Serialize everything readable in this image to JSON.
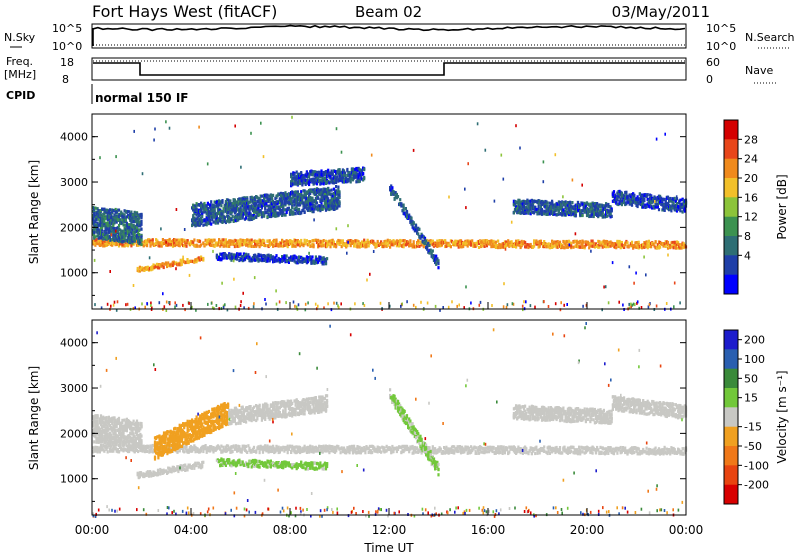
{
  "header": {
    "title": "Fort Hays West (fitACF)",
    "beam": "Beam 02",
    "date": "03/May/2011"
  },
  "status_panel": {
    "nsky_label": "N.Sky",
    "nsearch_label": "N.Search",
    "freq_label": "Freq.",
    "freq_unit": "[MHz]",
    "nave_label": "Nave",
    "cpid_label": "CPID",
    "cpid_value": "normal 150 IF",
    "noise_ticks": [
      "10^5",
      "10^0"
    ],
    "noise_right_ticks": [
      "10^5",
      "10^0"
    ],
    "freq_ticks": [
      "18",
      "8"
    ],
    "nave_ticks": [
      "60",
      "0"
    ]
  },
  "colors": {
    "power_scale": [
      "#0000ff",
      "#1f3fa8",
      "#2e6e74",
      "#3c9250",
      "#8cc43a",
      "#f2c02a",
      "#f08a1c",
      "#e8461a",
      "#d40000"
    ],
    "velocity_scale": [
      "#1c1ccc",
      "#2a5fb0",
      "#3a8a3a",
      "#72c83a",
      "#c8c8c4",
      "#f0a020",
      "#f07818",
      "#e84410",
      "#d80000"
    ]
  },
  "chart_data": [
    {
      "type": "heatmap",
      "name": "power",
      "ylabel": "Slant Range [km]",
      "yticks": [
        "4000",
        "3000",
        "2000",
        "1000"
      ],
      "ylim": [
        200,
        4500
      ],
      "xlim": [
        "00:00",
        "24:00"
      ],
      "colorbar_label": "Power [dB]",
      "colorbar_ticks": [
        "28",
        "24",
        "20",
        "16",
        "12",
        "8",
        "4"
      ],
      "colorbar_range": [
        0,
        32
      ],
      "bands": [
        {
          "t": [
            0,
            24
          ],
          "range_center": [
            1700,
            1650
          ],
          "width": 150,
          "value": 22
        },
        {
          "t": [
            0,
            2
          ],
          "range_center": [
            2150,
            2000
          ],
          "width": 700,
          "value": 8
        },
        {
          "t": [
            1.8,
            4.5
          ],
          "range_center": [
            1100,
            1350
          ],
          "width": 100,
          "value": 22
        },
        {
          "t": [
            4,
            10
          ],
          "range_center": [
            2300,
            2700
          ],
          "width": 500,
          "value": 7
        },
        {
          "t": [
            5,
            9.5
          ],
          "range_center": [
            1400,
            1300
          ],
          "width": 150,
          "value": 5
        },
        {
          "t": [
            8,
            11
          ],
          "range_center": [
            3100,
            3200
          ],
          "width": 300,
          "value": 6
        },
        {
          "t": [
            12,
            14
          ],
          "range_center": [
            2900,
            1200
          ],
          "width": 200,
          "value": 6
        },
        {
          "t": [
            17,
            21
          ],
          "range_center": [
            2500,
            2400
          ],
          "width": 300,
          "value": 7
        },
        {
          "t": [
            21,
            24
          ],
          "range_center": [
            2700,
            2500
          ],
          "width": 300,
          "value": 6
        }
      ]
    },
    {
      "type": "heatmap",
      "name": "velocity",
      "ylabel": "Slant Range [km]",
      "yticks": [
        "4000",
        "3000",
        "2000",
        "1000"
      ],
      "ylim": [
        200,
        4500
      ],
      "xlim": [
        "00:00",
        "24:00"
      ],
      "xlabel": "Time UT",
      "xticks": [
        "00:00",
        "04:00",
        "08:00",
        "12:00",
        "16:00",
        "20:00",
        "00:00"
      ],
      "colorbar_label": "Velocity [m s⁻¹]",
      "colorbar_ticks": [
        "200",
        "100",
        "50",
        "15",
        "-15",
        "-50",
        "-100",
        "-200"
      ],
      "colorbar_range": [
        -250,
        250
      ],
      "bands": [
        {
          "t": [
            0,
            24
          ],
          "range_center": [
            1700,
            1650
          ],
          "width": 150,
          "value": 0
        },
        {
          "t": [
            0,
            2
          ],
          "range_center": [
            2150,
            2000
          ],
          "width": 600,
          "value": -5
        },
        {
          "t": [
            1.8,
            4.5
          ],
          "range_center": [
            1100,
            1350
          ],
          "width": 120,
          "value": -5
        },
        {
          "t": [
            2.5,
            5.5
          ],
          "range_center": [
            1700,
            2500
          ],
          "width": 500,
          "value": -60
        },
        {
          "t": [
            5,
            9.5
          ],
          "range_center": [
            1400,
            1300
          ],
          "width": 150,
          "value": 40
        },
        {
          "t": [
            5.5,
            9.5
          ],
          "range_center": [
            2400,
            2700
          ],
          "width": 350,
          "value": 0
        },
        {
          "t": [
            12,
            14
          ],
          "range_center": [
            2900,
            1200
          ],
          "width": 250,
          "value": 35
        },
        {
          "t": [
            17,
            21
          ],
          "range_center": [
            2500,
            2400
          ],
          "width": 300,
          "value": 0
        },
        {
          "t": [
            21,
            24
          ],
          "range_center": [
            2700,
            2500
          ],
          "width": 300,
          "value": 0
        }
      ]
    }
  ]
}
